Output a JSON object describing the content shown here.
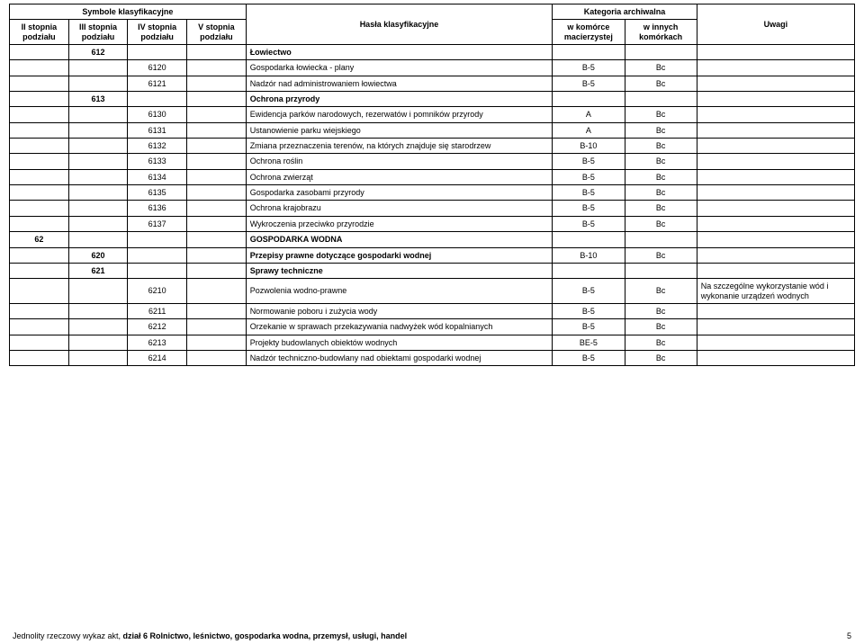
{
  "header": {
    "symbole": "Symbole klasyfikacyjne",
    "kategoria": "Kategoria archiwalna",
    "c1": "II stopnia podziału",
    "c2": "III stopnia podziału",
    "c3": "IV stopnia podziału",
    "c4": "V stopnia podziału",
    "hasla": "Hasła klasyfikacyjne",
    "kat1": "w komórce macierzystej",
    "kat2": "w innych komórkach",
    "uwagi": "Uwagi"
  },
  "rows": [
    {
      "c2": "612",
      "hasla": "Łowiectwo",
      "bold": true
    },
    {
      "c3": "6120",
      "hasla": "Gospodarka łowiecka - plany",
      "k1": "B-5",
      "k2": "Bc"
    },
    {
      "c3": "6121",
      "hasla": "Nadzór nad administrowaniem łowiectwa",
      "k1": "B-5",
      "k2": "Bc"
    },
    {
      "c2": "613",
      "hasla": "Ochrona przyrody",
      "bold": true
    },
    {
      "c3": "6130",
      "hasla": "Ewidencja parków narodowych, rezerwatów i pomników przyrody",
      "k1": "A",
      "k2": "Bc"
    },
    {
      "c3": "6131",
      "hasla": "Ustanowienie parku wiejskiego",
      "k1": "A",
      "k2": "Bc"
    },
    {
      "c3": "6132",
      "hasla": "Zmiana przeznaczenia terenów, na których znajduje się starodrzew",
      "k1": "B-10",
      "k2": "Bc"
    },
    {
      "c3": "6133",
      "hasla": "Ochrona roślin",
      "k1": "B-5",
      "k2": "Bc"
    },
    {
      "c3": "6134",
      "hasla": "Ochrona zwierząt",
      "k1": "B-5",
      "k2": "Bc"
    },
    {
      "c3": "6135",
      "hasla": "Gospodarka zasobami przyrody",
      "k1": "B-5",
      "k2": "Bc"
    },
    {
      "c3": "6136",
      "hasla": "Ochrona krajobrazu",
      "k1": "B-5",
      "k2": "Bc"
    },
    {
      "c3": "6137",
      "hasla": "Wykroczenia przeciwko przyrodzie",
      "k1": "B-5",
      "k2": "Bc"
    },
    {
      "c1": "62",
      "hasla": "GOSPODARKA WODNA",
      "bold": true
    },
    {
      "c2": "620",
      "hasla": "Przepisy prawne dotyczące gospodarki wodnej",
      "k1": "B-10",
      "k2": "Bc",
      "bold": true
    },
    {
      "c2": "621",
      "hasla": "Sprawy techniczne",
      "bold": true
    },
    {
      "c3": "6210",
      "hasla": "Pozwolenia wodno-prawne",
      "k1": "B-5",
      "k2": "Bc",
      "uwagi": "Na szczególne wykorzystanie wód i wykonanie urządzeń wodnych"
    },
    {
      "c3": "6211",
      "hasla": "Normowanie poboru i zużycia wody",
      "k1": "B-5",
      "k2": "Bc"
    },
    {
      "c3": "6212",
      "hasla": "Orzekanie w sprawach przekazywania nadwyżek wód kopalnianych",
      "k1": "B-5",
      "k2": "Bc"
    },
    {
      "c3": "6213",
      "hasla": "Projekty budowlanych obiektów wodnych",
      "k1": "BE-5",
      "k2": "Bc"
    },
    {
      "c3": "6214",
      "hasla": "Nadzór techniczno-budowlany nad obiektami gospodarki wodnej",
      "k1": "B-5",
      "k2": "Bc"
    }
  ],
  "footer_prefix": "Jednolity rzeczowy wykaz akt, ",
  "footer_bold": "dział 6 Rolnictwo, leśnictwo, gospodarka wodna, przemysł, usługi, handel",
  "page_number": "5"
}
